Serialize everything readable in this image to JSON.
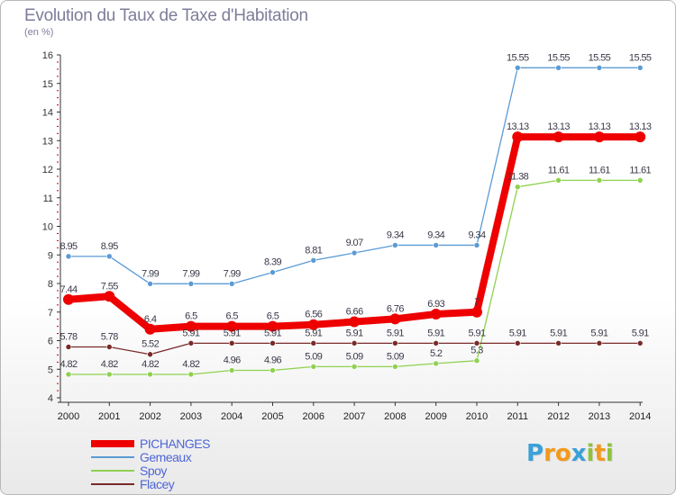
{
  "chart_data": {
    "type": "line",
    "title": "Evolution du Taux de Taxe d'Habitation",
    "subtitle": "(en %)",
    "xlabel": "",
    "ylabel": "",
    "x": [
      "2000",
      "2001",
      "2002",
      "2003",
      "2004",
      "2005",
      "2006",
      "2007",
      "2008",
      "2009",
      "2010",
      "2011",
      "2012",
      "2013",
      "2014"
    ],
    "ylim": [
      4,
      16
    ],
    "yticks": [
      4,
      5,
      6,
      7,
      8,
      9,
      10,
      11,
      12,
      13,
      14,
      15,
      16
    ],
    "grid": false,
    "legend_position": "bottom-left",
    "series": [
      {
        "name": "PICHANGES",
        "color": "#ee0000",
        "values": [
          7.44,
          7.55,
          6.4,
          6.5,
          6.5,
          6.5,
          6.56,
          6.66,
          6.76,
          6.93,
          7,
          13.13,
          13.13,
          13.13,
          13.13
        ],
        "labels": [
          "7.44",
          "7.55",
          "6.4",
          "6.5",
          "6.5",
          "6.5",
          "6.56",
          "6.66",
          "6.76",
          "6.93",
          "7",
          "13.13",
          "13.13",
          "13.13",
          "13.13"
        ]
      },
      {
        "name": "Gemeaux",
        "color": "#5b9bd5",
        "values": [
          8.95,
          8.95,
          7.99,
          7.99,
          7.99,
          8.39,
          8.81,
          9.07,
          9.34,
          9.34,
          9.34,
          15.55,
          15.55,
          15.55,
          15.55
        ],
        "labels": [
          "8.95",
          "8.95",
          "7.99",
          "7.99",
          "7.99",
          "8.39",
          "8.81",
          "9.07",
          "9.34",
          "9.34",
          "9.34",
          "15.55",
          "15.55",
          "15.55",
          "15.55"
        ]
      },
      {
        "name": "Spoy",
        "color": "#8fd14f",
        "values": [
          4.82,
          4.82,
          4.82,
          4.82,
          4.96,
          4.96,
          5.09,
          5.09,
          5.09,
          5.2,
          5.3,
          11.38,
          11.61,
          11.61,
          11.61
        ],
        "labels": [
          "4.82",
          "4.82",
          "4.82",
          "4.82",
          "4.96",
          "4.96",
          "5.09",
          "5.09",
          "5.09",
          "5.2",
          "5.3",
          "11.38",
          "11.61",
          "11.61",
          "11.61"
        ]
      },
      {
        "name": "Flacey",
        "color": "#7a2a2a",
        "values": [
          5.78,
          5.78,
          5.52,
          5.91,
          5.91,
          5.91,
          5.91,
          5.91,
          5.91,
          5.91,
          5.91,
          5.91,
          5.91,
          5.91,
          5.91
        ],
        "labels": [
          "5.78",
          "5.78",
          "5.52",
          "5.91",
          "5.91",
          "5.91",
          "5.91",
          "5.91",
          "5.91",
          "5.91",
          "5.91",
          "5.91",
          "5.91",
          "5.91",
          "5.91"
        ]
      }
    ]
  },
  "logo": {
    "letters": [
      {
        "ch": "P",
        "color": "#3aa0d8"
      },
      {
        "ch": "r",
        "color": "#f29a1e"
      },
      {
        "ch": "o",
        "color": "#f29a1e"
      },
      {
        "ch": "x",
        "color": "#3aa0d8"
      },
      {
        "ch": "i",
        "color": "#8fc23c"
      },
      {
        "ch": "t",
        "color": "#f29a1e"
      },
      {
        "ch": "i",
        "color": "#8fc23c"
      }
    ]
  }
}
